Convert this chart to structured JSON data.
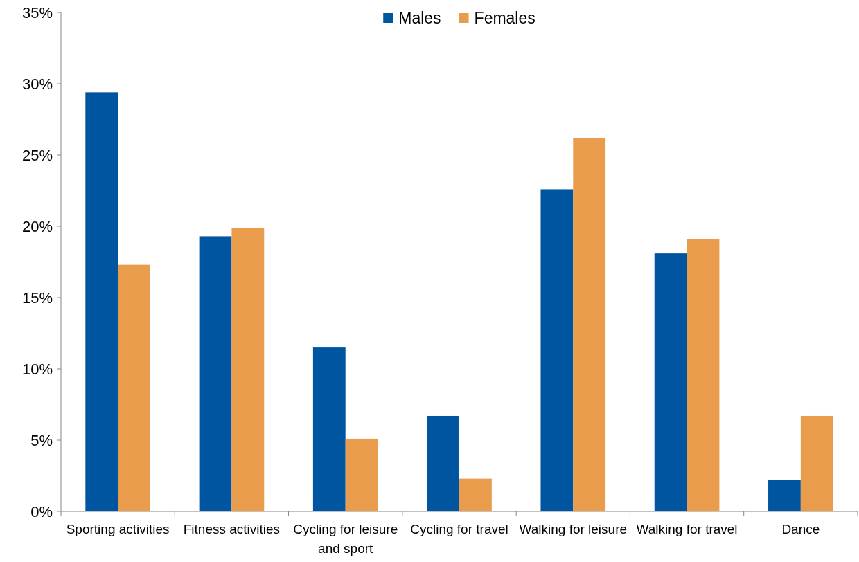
{
  "chart_data": {
    "type": "bar",
    "categories": [
      "Sporting activities",
      "Fitness activities",
      "Cycling for leisure and sport",
      "Cycling for travel",
      "Walking for leisure",
      "Walking for travel",
      "Dance"
    ],
    "series": [
      {
        "name": "Males",
        "color": "#0055a0",
        "values": [
          29.4,
          19.3,
          11.5,
          6.7,
          22.6,
          18.1,
          2.2
        ]
      },
      {
        "name": "Females",
        "color": "#e89c4c",
        "values": [
          17.3,
          19.9,
          5.1,
          2.3,
          26.2,
          19.1,
          6.7
        ]
      }
    ],
    "ylim": [
      0,
      35
    ],
    "yticks": [
      {
        "value": 0,
        "label": "0%"
      },
      {
        "value": 5,
        "label": "5%"
      },
      {
        "value": 10,
        "label": "10%"
      },
      {
        "value": 15,
        "label": "15%"
      },
      {
        "value": 20,
        "label": "20%"
      },
      {
        "value": 25,
        "label": "25%"
      },
      {
        "value": 30,
        "label": "30%"
      },
      {
        "value": 35,
        "label": "35%"
      }
    ],
    "grid": false,
    "legend": "top"
  }
}
